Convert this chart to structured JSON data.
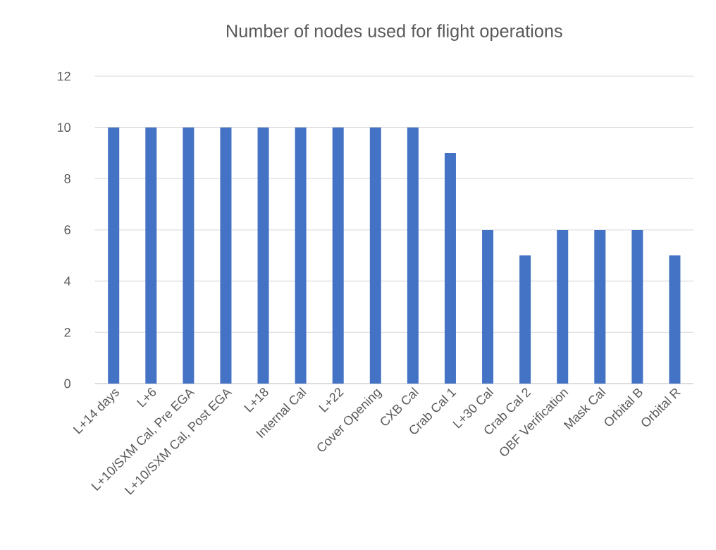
{
  "chart_data": {
    "type": "bar",
    "title": "Number of nodes used for flight operations",
    "categories": [
      "L+14 days",
      "L+6",
      "L+10/SXM Cal, Pre EGA",
      "L+10/SXM Cal, Post EGA",
      "L+18",
      "Internal Cal",
      "L+22",
      "Cover Opening",
      "CXB Cal",
      "Crab Cal 1",
      "L+30 Cal",
      "Crab Cal 2",
      "OBF Verification",
      "Mask Cal",
      "Orbital B",
      "Orbital R"
    ],
    "values": [
      10,
      10,
      10,
      10,
      10,
      10,
      10,
      10,
      10,
      9,
      6,
      5,
      6,
      6,
      6,
      5
    ],
    "color": "#4472c4",
    "ylim": [
      0,
      12
    ],
    "yticks": [
      0,
      2,
      4,
      6,
      8,
      10,
      12
    ],
    "grid": "y"
  }
}
